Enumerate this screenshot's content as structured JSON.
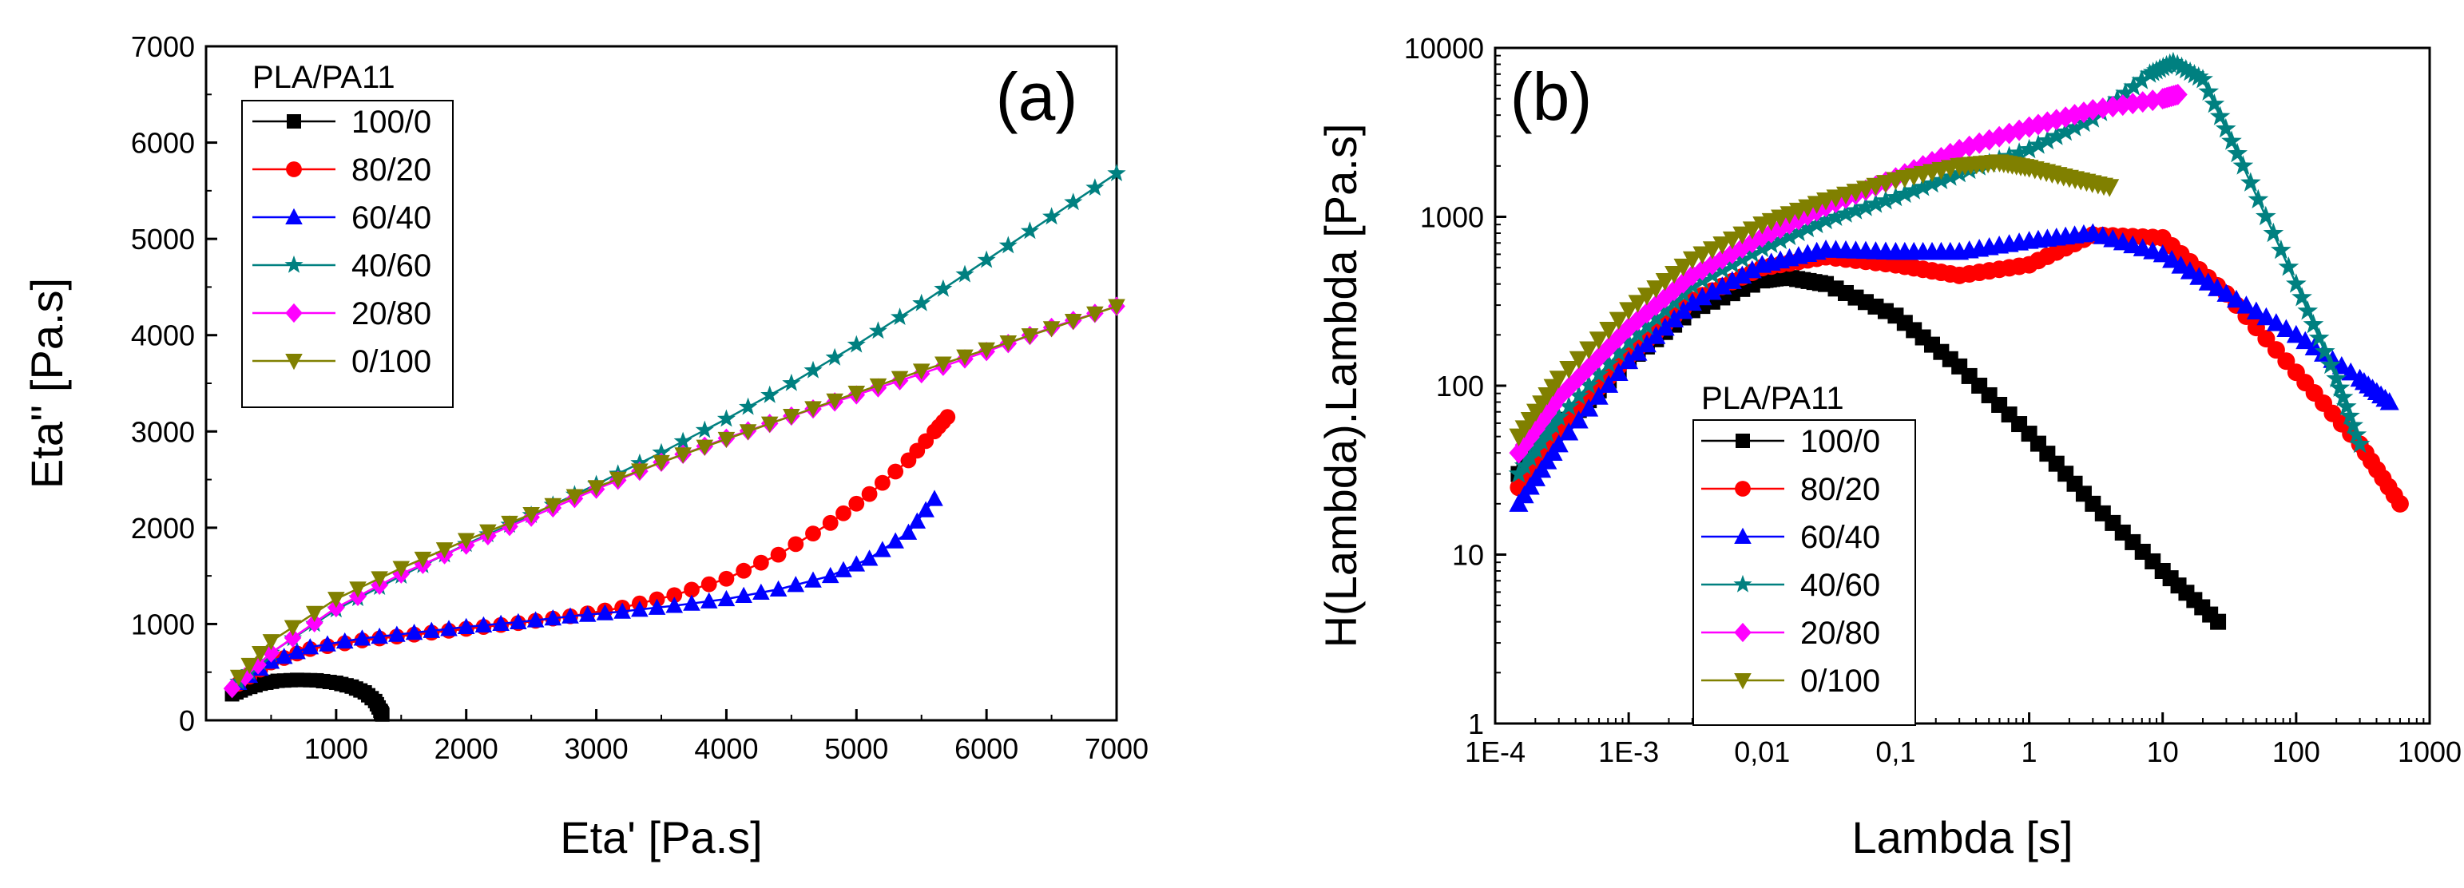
{
  "chart_data": [
    {
      "panel_label": "(a)",
      "type": "line",
      "xlabel": "Eta' [Pa.s]",
      "ylabel": "Eta'' [Pa.s]",
      "xlim": [
        0,
        7000
      ],
      "ylim": [
        0,
        7000
      ],
      "x_scale": "linear",
      "y_scale": "linear",
      "xticks": [
        1000,
        2000,
        3000,
        4000,
        5000,
        6000,
        7000
      ],
      "xtick_labels": [
        "1000",
        "2000",
        "3000",
        "4000",
        "5000",
        "6000",
        "7000"
      ],
      "yticks": [
        0,
        1000,
        2000,
        3000,
        4000,
        5000,
        6000,
        7000
      ],
      "ytick_labels": [
        "0",
        "1000",
        "2000",
        "3000",
        "4000",
        "5000",
        "6000",
        "7000"
      ],
      "legend_title": "PLA/PA11",
      "legend_position": "top-left",
      "grid": false,
      "series": [
        {
          "name": "100/0",
          "color": "#000000",
          "marker": "square",
          "x": [
            200,
            300,
            420,
            550,
            700,
            850,
            1000,
            1120,
            1220,
            1300,
            1340,
            1355
          ],
          "y": [
            270,
            330,
            380,
            410,
            420,
            415,
            390,
            350,
            290,
            200,
            100,
            60
          ]
        },
        {
          "name": "80/20",
          "color": "#ff0000",
          "marker": "circle",
          "x": [
            250,
            500,
            800,
            1200,
            1600,
            2000,
            2400,
            2800,
            3200,
            3600,
            4000,
            4400,
            4800,
            5100,
            5400,
            5600,
            5700
          ],
          "y": [
            380,
            600,
            740,
            830,
            890,
            950,
            1010,
            1080,
            1170,
            1300,
            1470,
            1720,
            2050,
            2350,
            2700,
            3000,
            3150
          ]
        },
        {
          "name": "60/40",
          "color": "#0000ff",
          "marker": "triangle-up",
          "x": [
            250,
            500,
            800,
            1200,
            1600,
            2000,
            2400,
            2800,
            3200,
            3600,
            4000,
            4400,
            4800,
            5100,
            5400,
            5600
          ],
          "y": [
            390,
            610,
            760,
            850,
            910,
            970,
            1020,
            1080,
            1130,
            1190,
            1260,
            1360,
            1500,
            1680,
            1950,
            2300
          ]
        },
        {
          "name": "40/60",
          "color": "#008080",
          "marker": "star",
          "x": [
            250,
            500,
            1000,
            1500,
            2000,
            2500,
            3000,
            3500,
            4000,
            4500,
            5000,
            5500,
            6000,
            6500,
            7000
          ],
          "y": [
            400,
            700,
            1150,
            1500,
            1830,
            2130,
            2450,
            2780,
            3130,
            3500,
            3900,
            4330,
            4780,
            5230,
            5680
          ]
        },
        {
          "name": "20/80",
          "color": "#ff00ff",
          "marker": "diamond",
          "x": [
            200,
            500,
            1000,
            1500,
            2000,
            2500,
            3000,
            3500,
            4000,
            4500,
            5000,
            5500,
            6000,
            6500,
            7000
          ],
          "y": [
            330,
            700,
            1170,
            1520,
            1820,
            2110,
            2400,
            2680,
            2930,
            3160,
            3380,
            3600,
            3830,
            4080,
            4300
          ]
        },
        {
          "name": "0/100",
          "color": "#808000",
          "marker": "triangle-down",
          "x": [
            250,
            500,
            1000,
            1500,
            2000,
            2500,
            3000,
            3500,
            4000,
            4500,
            5000,
            5500,
            6000,
            6500,
            7000
          ],
          "y": [
            450,
            820,
            1260,
            1580,
            1870,
            2140,
            2420,
            2680,
            2920,
            3160,
            3400,
            3630,
            3850,
            4070,
            4300
          ]
        }
      ]
    },
    {
      "panel_label": "(b)",
      "type": "scatter",
      "xlabel": "Lambda [s]",
      "ylabel": "H(Lambda).Lambda [Pa.s]",
      "xlim": [
        0.0001,
        1000
      ],
      "ylim": [
        1,
        10000
      ],
      "x_scale": "log",
      "y_scale": "log",
      "xticks": [
        0.0001,
        0.001,
        0.01,
        0.1,
        1,
        10,
        100,
        1000
      ],
      "xtick_labels": [
        "1E-4",
        "1E-3",
        "0,01",
        "0,1",
        "1",
        "10",
        "100",
        "1000"
      ],
      "yticks": [
        1,
        10,
        100,
        1000,
        10000
      ],
      "ytick_labels": [
        "1",
        "10",
        "100",
        "1000",
        "10000"
      ],
      "legend_title": "PLA/PA11",
      "legend_position": "bottom-left",
      "grid": false,
      "series": [
        {
          "name": "100/0",
          "color": "#000000",
          "marker": "square",
          "x": [
            0.00015,
            0.0003,
            0.001,
            0.003,
            0.01,
            0.015,
            0.03,
            0.1,
            0.3,
            1,
            3,
            10,
            26
          ],
          "y": [
            30,
            55,
            140,
            280,
            420,
            440,
            400,
            260,
            130,
            52,
            20,
            8,
            4
          ]
        },
        {
          "name": "80/20",
          "color": "#ff0000",
          "marker": "circle",
          "x": [
            0.00015,
            0.0003,
            0.001,
            0.003,
            0.01,
            0.03,
            0.1,
            0.3,
            1,
            3,
            10,
            30,
            100,
            300,
            600
          ],
          "y": [
            25,
            55,
            150,
            320,
            500,
            580,
            520,
            450,
            520,
            780,
            750,
            350,
            120,
            45,
            20
          ]
        },
        {
          "name": "60/40",
          "color": "#0000ff",
          "marker": "triangle-up",
          "x": [
            0.00015,
            0.0003,
            0.001,
            0.003,
            0.01,
            0.03,
            0.1,
            0.3,
            1,
            3,
            10,
            30,
            100,
            300,
            500
          ],
          "y": [
            20,
            45,
            140,
            310,
            520,
            640,
            620,
            620,
            720,
            800,
            600,
            350,
            200,
            110,
            80
          ]
        },
        {
          "name": "40/60",
          "color": "#008080",
          "marker": "star",
          "x": [
            0.00015,
            0.0003,
            0.001,
            0.003,
            0.01,
            0.03,
            0.1,
            0.3,
            1,
            3,
            8,
            12,
            20,
            40,
            100,
            200,
            300
          ],
          "y": [
            30,
            65,
            180,
            390,
            650,
            950,
            1300,
            1800,
            2500,
            3800,
            7000,
            8200,
            6500,
            2000,
            400,
            110,
            45
          ]
        },
        {
          "name": "20/80",
          "color": "#ff00ff",
          "marker": "diamond",
          "x": [
            0.00015,
            0.0003,
            0.001,
            0.003,
            0.01,
            0.03,
            0.1,
            0.3,
            1,
            3,
            10,
            13
          ],
          "y": [
            40,
            85,
            220,
            450,
            760,
            1150,
            1700,
            2500,
            3400,
            4300,
            5000,
            5300
          ]
        },
        {
          "name": "0/100",
          "color": "#808000",
          "marker": "triangle-down",
          "x": [
            0.00015,
            0.0003,
            0.001,
            0.003,
            0.01,
            0.03,
            0.1,
            0.3,
            0.6,
            1,
            2,
            4
          ],
          "y": [
            50,
            110,
            280,
            560,
            900,
            1250,
            1650,
            2000,
            2100,
            1950,
            1700,
            1500
          ]
        }
      ]
    }
  ]
}
